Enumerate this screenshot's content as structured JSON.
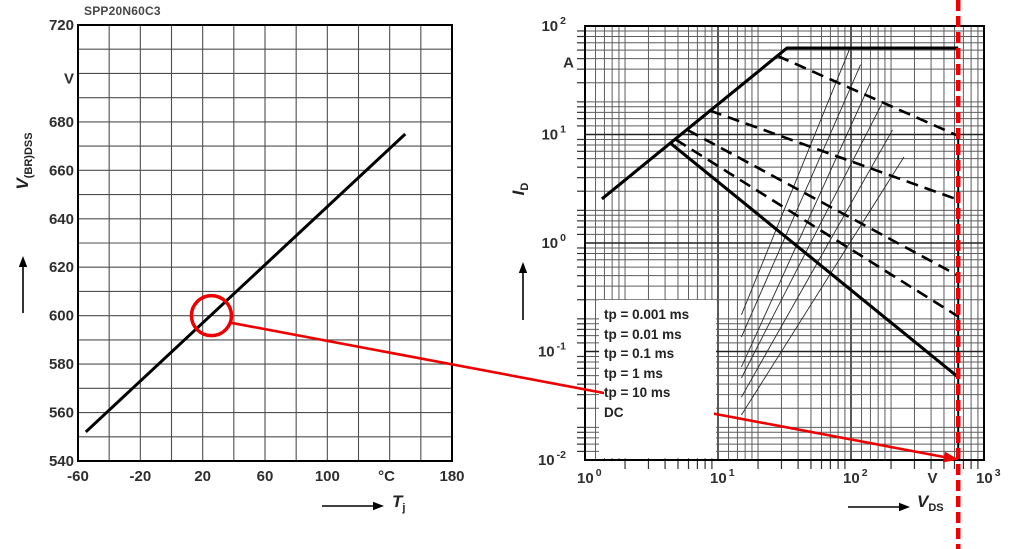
{
  "title": "SPP20N60C3",
  "accent_color": "#ec0000",
  "chart_data": [
    {
      "id": "breakdown-voltage-vs-temperature",
      "type": "line",
      "title": "SPP20N60C3",
      "xlabel_main": "T",
      "xlabel_sub": "j",
      "x_unit": "°C",
      "ylabel_main": "V",
      "ylabel_sub": "(BR)DSS",
      "y_unit": "V",
      "xlim": [
        -60,
        180
      ],
      "ylim": [
        540,
        720
      ],
      "x_grid_step": 20,
      "y_grid_step": 10,
      "x_ticks": [
        {
          "v": -60,
          "label": "-60"
        },
        {
          "v": -20,
          "label": "-20"
        },
        {
          "v": 20,
          "label": "20"
        },
        {
          "v": 60,
          "label": "60"
        },
        {
          "v": 100,
          "label": "100"
        },
        {
          "v": 138,
          "label": "°C"
        },
        {
          "v": 180,
          "label": "180"
        }
      ],
      "y_ticks": [
        {
          "v": 720,
          "label": "720"
        },
        {
          "v": 698,
          "label": "V"
        },
        {
          "v": 680,
          "label": "680"
        },
        {
          "v": 660,
          "label": "660"
        },
        {
          "v": 640,
          "label": "640"
        },
        {
          "v": 620,
          "label": "620"
        },
        {
          "v": 600,
          "label": "600"
        },
        {
          "v": 580,
          "label": "580"
        },
        {
          "v": 560,
          "label": "560"
        },
        {
          "v": 540,
          "label": "540"
        }
      ],
      "series": [
        {
          "name": "V(BR)DSS vs Tj",
          "style": "solid",
          "points": [
            [
              -55,
              552
            ],
            [
              150,
              675
            ]
          ]
        }
      ],
      "annotation_circle": {
        "tj": 25,
        "v_br": 600
      }
    },
    {
      "id": "safe-operating-area",
      "type": "line-loglog",
      "xlabel_main": "V",
      "xlabel_sub": "DS",
      "x_unit": "V",
      "ylabel_main": "I",
      "ylabel_sub": "D",
      "y_unit": "A",
      "xlim": [
        1,
        1000
      ],
      "ylim": [
        0.01,
        100
      ],
      "x_ticks": [
        {
          "v": 1,
          "base": "10",
          "exp": "0"
        },
        {
          "v": 10,
          "base": "10",
          "exp": "1"
        },
        {
          "v": 100,
          "base": "10",
          "exp": "2"
        },
        {
          "v": 410,
          "label": "V"
        },
        {
          "v": 1000,
          "base": "10",
          "exp": "3"
        }
      ],
      "y_ticks": [
        {
          "v": 100,
          "base": "10",
          "exp": "2"
        },
        {
          "v": 46,
          "label": "A"
        },
        {
          "v": 10,
          "base": "10",
          "exp": "1"
        },
        {
          "v": 1,
          "base": "10",
          "exp": "0"
        },
        {
          "v": 0.1,
          "base": "10",
          "exp": "-1"
        },
        {
          "v": 0.01,
          "base": "10",
          "exp": "-2"
        }
      ],
      "legend": [
        "tp = 0.001 ms",
        "tp = 0.01 ms",
        "tp = 0.1 ms",
        "tp = 1 ms",
        "tp = 10 ms",
        "DC"
      ],
      "series": [
        {
          "name": "tp = 0.001 ms",
          "style": "solid",
          "points": [
            [
              1.34,
              2.55
            ],
            [
              33,
              62.6
            ],
            [
              640,
              62.6
            ]
          ]
        },
        {
          "name": "tp = 0.01 ms",
          "style": "dashed",
          "points": [
            [
              28,
              53
            ],
            [
              640,
              9.7
            ]
          ]
        },
        {
          "name": "tp = 0.1 ms",
          "style": "dashed",
          "points": [
            [
              8.7,
              16.6
            ],
            [
              640,
              2.5
            ]
          ]
        },
        {
          "name": "tp = 1 ms",
          "style": "dashed",
          "points": [
            [
              5.9,
              11
            ],
            [
              640,
              0.5
            ]
          ]
        },
        {
          "name": "tp = 10 ms",
          "style": "dashed",
          "points": [
            [
              4.8,
              9
            ],
            [
              640,
              0.21
            ]
          ]
        },
        {
          "name": "DC",
          "style": "solid",
          "points": [
            [
              4.4,
              8.3
            ],
            [
              640,
              0.058
            ]
          ]
        }
      ],
      "aux_lines": [
        {
          "points": [
            [
              15,
              0.218
            ],
            [
              98,
              62
            ]
          ]
        },
        {
          "points": [
            [
              15,
              0.136
            ],
            [
              118,
              44
            ]
          ]
        },
        {
          "points": [
            [
              15,
              0.072
            ],
            [
              140,
              30
            ]
          ]
        },
        {
          "points": [
            [
              15,
              0.057
            ],
            [
              170,
              19
            ]
          ]
        },
        {
          "points": [
            [
              15,
              0.038
            ],
            [
              205,
              11
            ]
          ]
        },
        {
          "points": [
            [
              15,
              0.026
            ],
            [
              250,
              6.2
            ]
          ]
        }
      ],
      "vds_boundary": {
        "vds": 640,
        "i_top": 9.7,
        "i_bottom": 0.01
      }
    }
  ],
  "annotations": {
    "highlight_circle": {
      "chart": "left",
      "tj": 25,
      "v_br": 600
    },
    "connector_arrow": {
      "from": "left-chart-circle",
      "to": "soa-bottom-right-corner"
    },
    "breakdown_vline": {
      "vds": 640
    }
  }
}
